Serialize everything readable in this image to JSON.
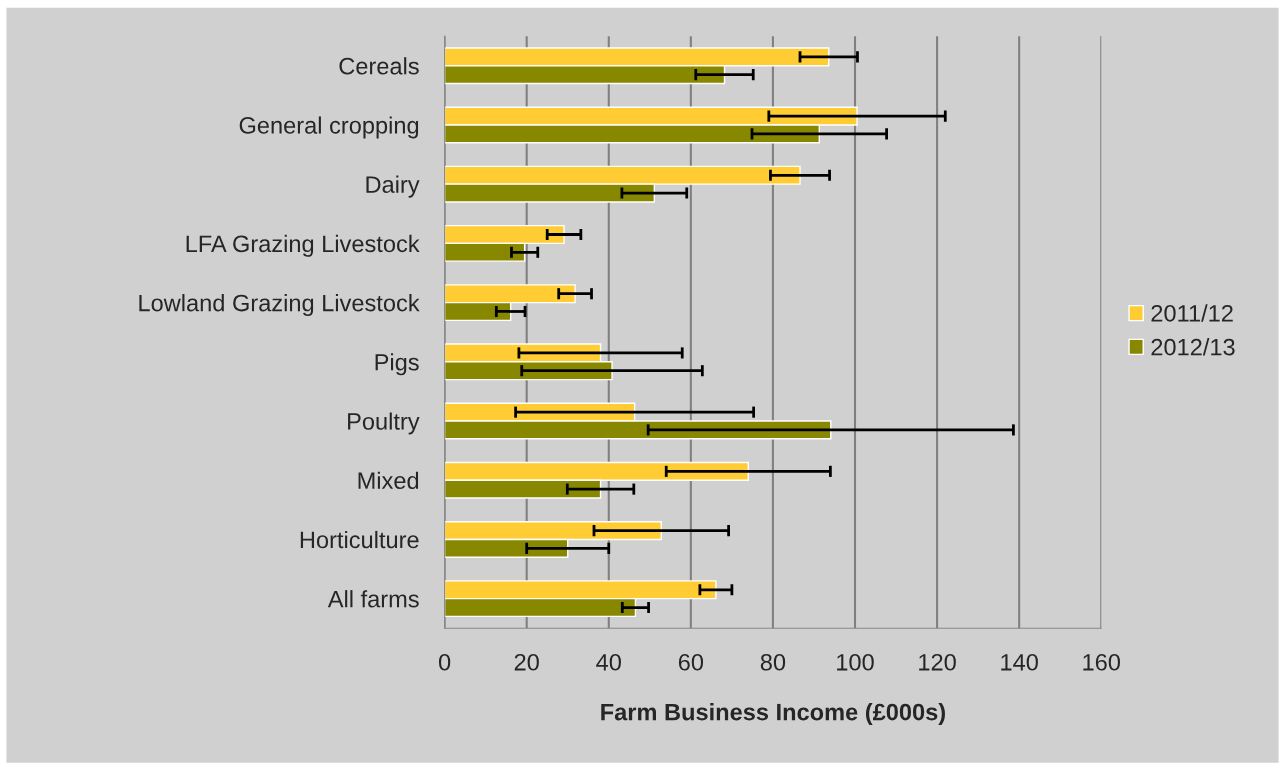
{
  "chart_data": {
    "type": "bar",
    "orientation": "horizontal",
    "xlabel": "Farm Business Income (£000s)",
    "categories": [
      "Cereals",
      "General cropping",
      "Dairy",
      "LFA Grazing Livestock",
      "Lowland Grazing Livestock",
      "Pigs",
      "Poultry",
      "Mixed",
      "Horticulture",
      "All farms"
    ],
    "series": [
      {
        "name": "2011/12",
        "color": "#ffcc33",
        "values": [
          93.6,
          100.5,
          86.6,
          29.1,
          31.8,
          38,
          46.3,
          74,
          52.8,
          66.1
        ],
        "errors": [
          7,
          21.5,
          7.2,
          4.1,
          4,
          19.9,
          29,
          20,
          16.4,
          3.9
        ]
      },
      {
        "name": "2012/13",
        "color": "#888800",
        "values": [
          68.2,
          91.3,
          51.1,
          19.5,
          16.1,
          40.8,
          94.1,
          38,
          30,
          46.5
        ],
        "errors": [
          7,
          16.4,
          7.9,
          3.2,
          3.5,
          22,
          44.5,
          8.1,
          10,
          3.2
        ]
      }
    ],
    "xlim": [
      0,
      160
    ],
    "xticks": [
      0,
      20,
      40,
      60,
      80,
      100,
      120,
      140,
      160
    ],
    "grid": "x",
    "legend": "right"
  }
}
